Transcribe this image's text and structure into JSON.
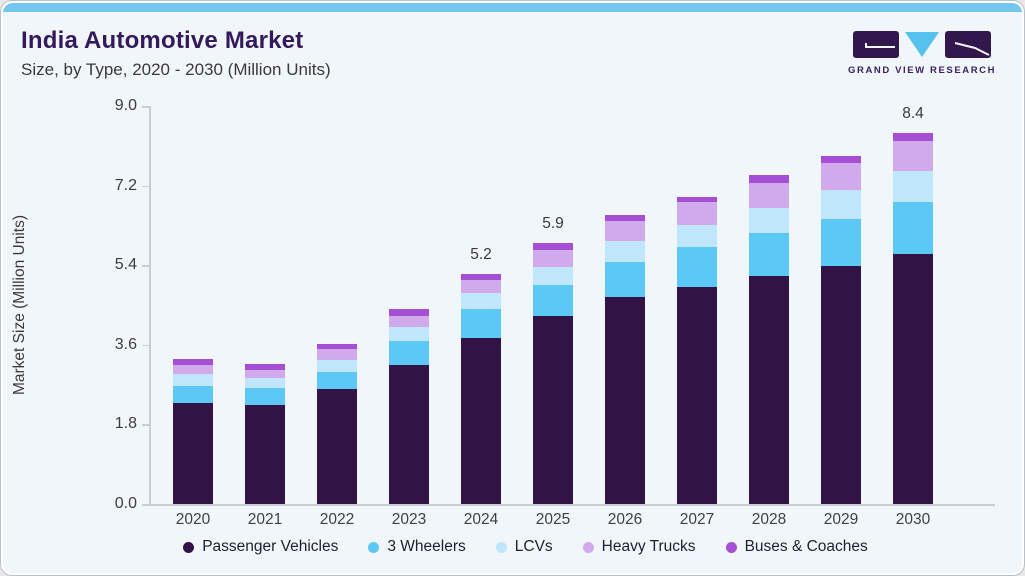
{
  "header": {
    "title": "India Automotive Market",
    "subtitle": "Size, by Type, 2020 - 2030 (Million Units)"
  },
  "logo": {
    "text": "GRAND VIEW RESEARCH",
    "block_color": "#32174d",
    "triangle_color": "#55c2ee"
  },
  "chart_data": {
    "type": "bar",
    "stacked": true,
    "title": "India Automotive Market Size, by Type, 2020 - 2030 (Million Units)",
    "ylabel": "Market Size (Million Units)",
    "xlabel": "",
    "ylim": [
      0,
      9.0
    ],
    "yticks": [
      0.0,
      1.8,
      3.6,
      5.4,
      7.2,
      9.0
    ],
    "ytick_labels": [
      "0.0",
      "1.8",
      "3.6",
      "5.4",
      "7.2",
      "9.0"
    ],
    "grid": false,
    "legend_position": "bottom",
    "categories": [
      "2020",
      "2021",
      "2022",
      "2023",
      "2024",
      "2025",
      "2026",
      "2027",
      "2028",
      "2029",
      "2030"
    ],
    "series": [
      {
        "name": "Passenger Vehicles",
        "color": "#321345",
        "values": [
          2.28,
          2.24,
          2.59,
          3.14,
          3.75,
          4.25,
          4.69,
          4.9,
          5.16,
          5.39,
          5.66
        ]
      },
      {
        "name": "3 Wheelers",
        "color": "#5cc8f5",
        "values": [
          0.4,
          0.38,
          0.4,
          0.54,
          0.66,
          0.71,
          0.79,
          0.91,
          0.96,
          1.06,
          1.16
        ]
      },
      {
        "name": "LCVs",
        "color": "#bfe6fa",
        "values": [
          0.26,
          0.23,
          0.27,
          0.33,
          0.36,
          0.39,
          0.47,
          0.49,
          0.57,
          0.65,
          0.7
        ]
      },
      {
        "name": "Heavy Trucks",
        "color": "#d1a9ed",
        "values": [
          0.2,
          0.19,
          0.24,
          0.24,
          0.29,
          0.4,
          0.44,
          0.52,
          0.56,
          0.61,
          0.7
        ]
      },
      {
        "name": "Buses & Coaches",
        "color": "#a54fd5",
        "values": [
          0.15,
          0.12,
          0.13,
          0.15,
          0.14,
          0.15,
          0.15,
          0.13,
          0.18,
          0.17,
          0.18
        ]
      }
    ],
    "totals": [
      3.29,
      3.16,
      3.63,
      4.4,
      5.2,
      5.9,
      6.54,
      6.95,
      7.43,
      7.88,
      8.4
    ],
    "total_labels": {
      "2024": "5.2",
      "2025": "5.9",
      "2030": "8.4"
    }
  }
}
